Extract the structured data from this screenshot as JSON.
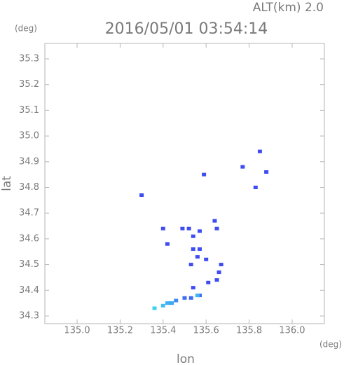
{
  "chart_data": {
    "type": "scatter",
    "title": "2016/05/01 03:54:14",
    "altitude_label": "ALT(km) 2.0",
    "x_label": "lon",
    "y_label": "lat",
    "x_unit": "(deg)",
    "y_unit": "(deg)",
    "xlim": [
      134.85,
      136.15
    ],
    "ylim": [
      34.27,
      35.36
    ],
    "xticks": [
      {
        "value": 135,
        "label": "135.0"
      },
      135.2,
      135.4,
      135.6,
      135.8,
      {
        "value": 136,
        "label": "136.0"
      }
    ],
    "yticks": [
      34.3,
      34.4,
      34.5,
      34.6,
      34.7,
      34.8,
      34.9,
      {
        "value": 35,
        "label": "35.0"
      },
      35.1,
      35.2,
      35.3
    ],
    "x": [
      135.3,
      135.85,
      135.77,
      135.88,
      135.59,
      135.83,
      135.4,
      135.64,
      135.65,
      135.49,
      135.52,
      135.57,
      135.54,
      135.42,
      135.54,
      135.57,
      135.56,
      135.53,
      135.6,
      135.67,
      135.66,
      135.65,
      135.61,
      135.54,
      135.57,
      135.53,
      135.5,
      135.46,
      135.43,
      135.4,
      135.42,
      135.36,
      135.44,
      135.56
    ],
    "values": [
      34.77,
      34.94,
      34.88,
      34.86,
      34.85,
      34.8,
      34.64,
      34.67,
      34.64,
      34.64,
      34.64,
      34.63,
      34.61,
      34.58,
      34.56,
      34.56,
      34.53,
      34.5,
      34.52,
      34.5,
      34.47,
      34.44,
      34.43,
      34.41,
      34.38,
      34.37,
      34.37,
      34.36,
      34.35,
      34.34,
      34.35,
      34.33,
      34.35,
      34.38
    ],
    "colors": [
      "#3f4cf0",
      "#3f4cf0",
      "#3f4cf0",
      "#3f4cf0",
      "#3f4cf0",
      "#3f4cf0",
      "#3f4cf0",
      "#3f4cf0",
      "#3f4cf0",
      "#3f4cf0",
      "#3f4cf0",
      "#3f4cf0",
      "#3f4cf0",
      "#3f4cf0",
      "#3f4cf0",
      "#3f4cf0",
      "#3f4cf0",
      "#3f4cf0",
      "#3f4cf0",
      "#3f4cf0",
      "#3f4cf0",
      "#3f4cf0",
      "#3f4cf0",
      "#3f4cf0",
      "#3f6cf0",
      "#3f6cf0",
      "#3f6cf0",
      "#3f8cf0",
      "#3fa0f0",
      "#3fc0f0",
      "#3fb0f0",
      "#3fd0f0",
      "#3fa8f0",
      "#3fb8f0"
    ]
  }
}
